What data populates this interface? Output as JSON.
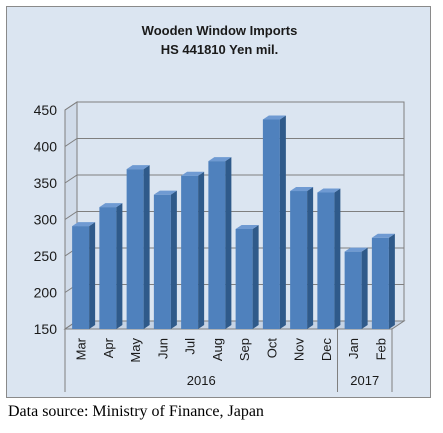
{
  "chart_data": {
    "type": "bar",
    "title_lines": [
      "Wooden Window Imports",
      "HS 441810 Yen mil."
    ],
    "categories": [
      "Mar",
      "Apr",
      "May",
      "Jun",
      "Jul",
      "Aug",
      "Sep",
      "Oct",
      "Nov",
      "Dec",
      "Jan",
      "Feb"
    ],
    "values": [
      291,
      317,
      369,
      334,
      360,
      380,
      287,
      437,
      339,
      337,
      256,
      275
    ],
    "year_groups": [
      {
        "label": "2016",
        "span": 10
      },
      {
        "label": "2017",
        "span": 2
      }
    ],
    "ylim": [
      150,
      450
    ],
    "yticks": [
      150,
      200,
      250,
      300,
      350,
      400,
      450
    ],
    "grid": true,
    "legend": "none",
    "bar_color": "#4f81bd"
  },
  "source_note": "Data source: Ministry of Finance, Japan"
}
